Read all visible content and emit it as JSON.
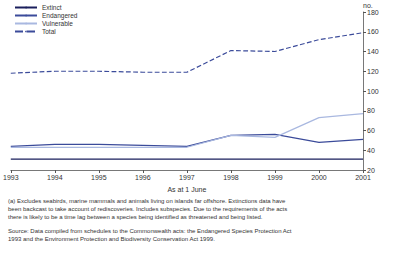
{
  "chart_data": {
    "type": "line",
    "x_label": "As at 1 June",
    "y_label": "no.",
    "x": [
      1993,
      1994,
      1995,
      1996,
      1997,
      1998,
      1999,
      2000,
      2001
    ],
    "xlim": [
      1993,
      2001
    ],
    "xticks": [
      1993,
      1994,
      1995,
      1996,
      1997,
      1998,
      1999,
      2000,
      2001
    ],
    "ylim": [
      20,
      180
    ],
    "yticks": [
      20,
      40,
      60,
      80,
      100,
      120,
      140,
      160,
      180
    ],
    "grid": false,
    "legend": "top-left",
    "series": [
      {
        "name": "Extinct",
        "color": "#1a1f5c",
        "line_style": "solid",
        "values": [
          31,
          31,
          31,
          31,
          31,
          31,
          31,
          31,
          31
        ]
      },
      {
        "name": "Endangered",
        "color": "#3b4b9a",
        "line_style": "solid",
        "values": [
          44,
          46,
          46,
          45,
          44,
          55,
          56,
          48,
          51
        ]
      },
      {
        "name": "Vulnerable",
        "color": "#a9b8e0",
        "line_style": "solid",
        "values": [
          43,
          43,
          43,
          43,
          43,
          55,
          53,
          73,
          77
        ]
      },
      {
        "name": "Total",
        "color": "#3b4b9a",
        "line_style": "dashed",
        "values": [
          118,
          120,
          120,
          119,
          119,
          141,
          140,
          152,
          159
        ]
      }
    ],
    "notes": [
      "(a) Excludes seabirds, marine mammals and animals living on islands far offshore. Extinctions data have",
      "been backcast to take account of rediscoveries. Includes subspecies. Due to the requirements of the acts",
      "there is likely to be a time lag between a species being identified as threatened and being listed."
    ],
    "source": [
      "Source: Data compiled from schedules to the Commonwealth acts: the Endangered Species Protection Act",
      "1993 and the Environment Protection and Biodiversity Conservation Act 1999."
    ]
  }
}
